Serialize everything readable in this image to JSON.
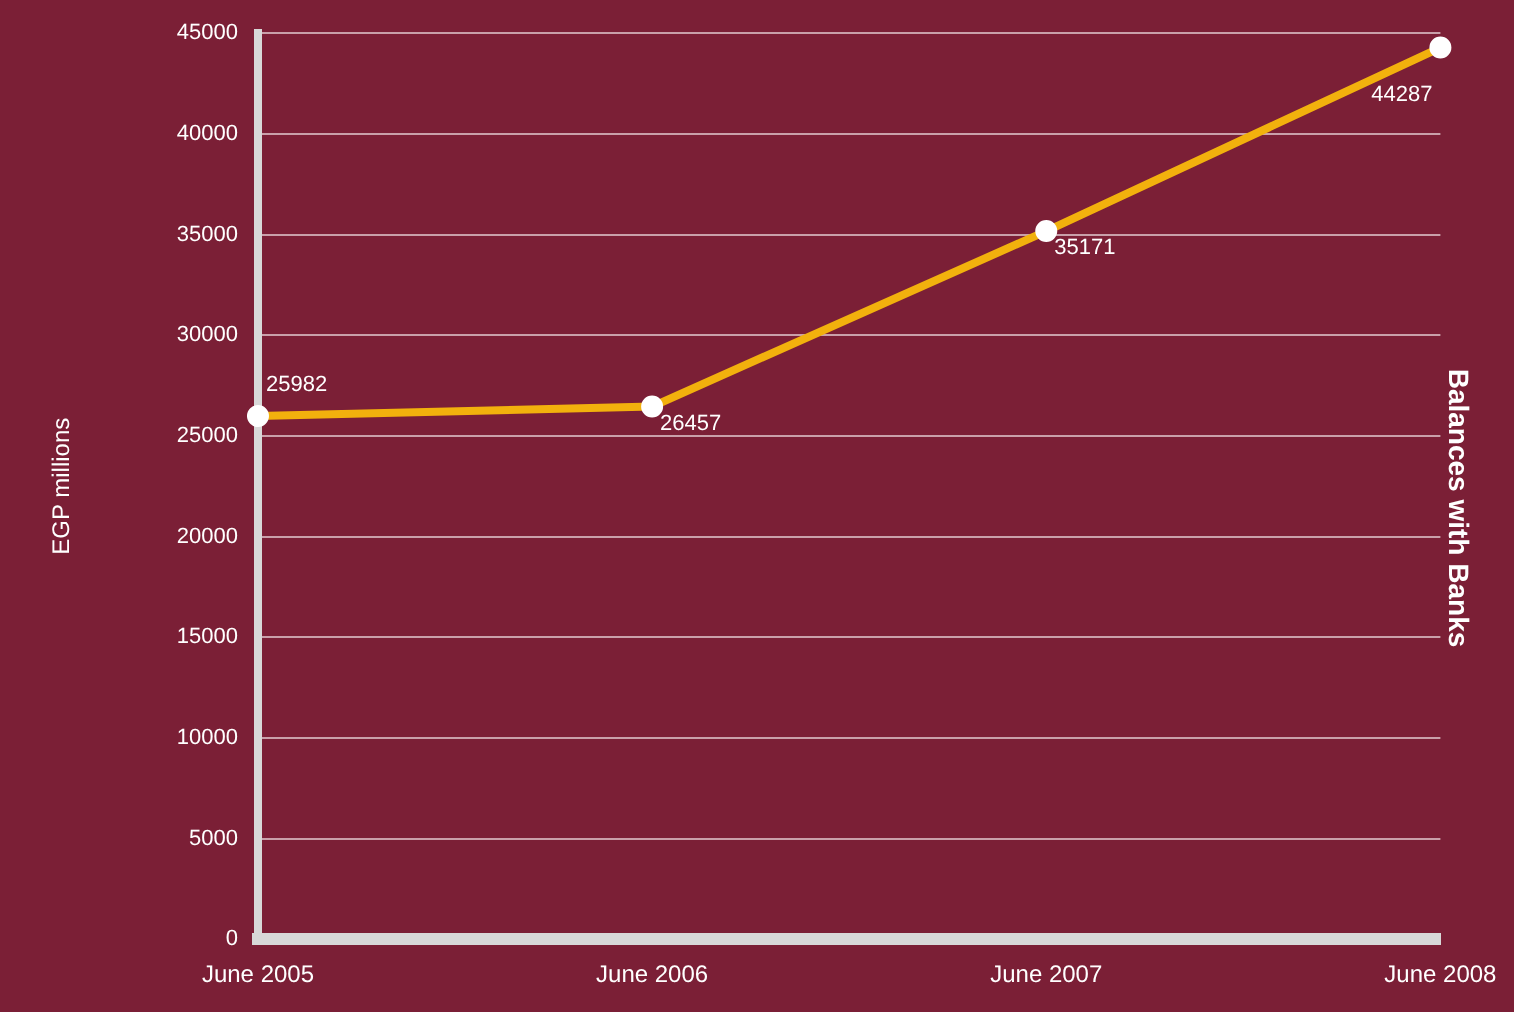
{
  "chart_data": {
    "type": "line",
    "title": "Balances with Banks",
    "ylabel": "EGP millions",
    "categories": [
      "June 2005",
      "June 2006",
      "June 2007",
      "June 2008"
    ],
    "series": [
      {
        "color": "#f2b10d",
        "values": [
          25982,
          26457,
          35171,
          44287
        ]
      }
    ],
    "ylim": [
      0,
      45000
    ],
    "yticks": [
      0,
      5000,
      10000,
      15000,
      20000,
      25000,
      30000,
      35000,
      40000,
      45000
    ],
    "grid": "y",
    "legend": false,
    "marker": "circle",
    "line_style": "solid",
    "data_labels": true
  }
}
